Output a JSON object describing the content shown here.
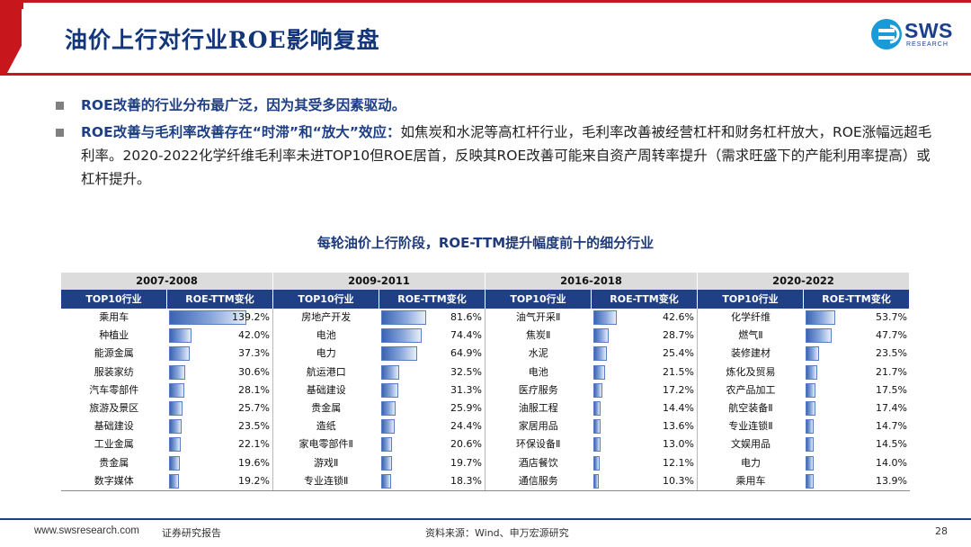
{
  "header": {
    "title": "油价上行对行业ROE影响复盘",
    "logo_text": "SWS",
    "logo_sub": "RESEARCH",
    "logo_mark_color": "#1a9ad6",
    "brand_red": "#c8161d",
    "brand_navy": "#1f3f86"
  },
  "bullets": [
    {
      "bold": "ROE改善的行业分布最广泛，因为其受多因素驱动。",
      "text": ""
    },
    {
      "bold": "ROE改善与毛利率改善存在“时滞”和“放大”效应：",
      "text": "如焦炭和水泥等高杠杆行业，毛利率改善被经营杠杆和财务杠杆放大，ROE涨幅远超毛利率。2020-2022化学纤维毛利率未进TOP10但ROE居首，反映其ROE改善可能来自资产周转率提升（需求旺盛下的产能利用率提高）或杠杆提升。"
    }
  ],
  "table": {
    "title": "每轮油价上行阶段，ROE-TTM提升幅度前十的细分行业",
    "col_name": "TOP10行业",
    "col_value": "ROE-TTM变化",
    "max_value": 139.2,
    "periods": [
      {
        "label": "2007-2008",
        "rows": [
          {
            "name": "乘用车",
            "value": 139.2,
            "label": "139.2%"
          },
          {
            "name": "种植业",
            "value": 42.0,
            "label": "42.0%"
          },
          {
            "name": "能源金属",
            "value": 37.3,
            "label": "37.3%"
          },
          {
            "name": "服装家纺",
            "value": 30.6,
            "label": "30.6%"
          },
          {
            "name": "汽车零部件",
            "value": 28.1,
            "label": "28.1%"
          },
          {
            "name": "旅游及景区",
            "value": 25.7,
            "label": "25.7%"
          },
          {
            "name": "基础建设",
            "value": 23.5,
            "label": "23.5%"
          },
          {
            "name": "工业金属",
            "value": 22.1,
            "label": "22.1%"
          },
          {
            "name": "贵金属",
            "value": 19.6,
            "label": "19.6%"
          },
          {
            "name": "数字媒体",
            "value": 19.2,
            "label": "19.2%"
          }
        ]
      },
      {
        "label": "2009-2011",
        "rows": [
          {
            "name": "房地产开发",
            "value": 81.6,
            "label": "81.6%"
          },
          {
            "name": "电池",
            "value": 74.4,
            "label": "74.4%"
          },
          {
            "name": "电力",
            "value": 64.9,
            "label": "64.9%"
          },
          {
            "name": "航运港口",
            "value": 32.5,
            "label": "32.5%"
          },
          {
            "name": "基础建设",
            "value": 31.3,
            "label": "31.3%"
          },
          {
            "name": "贵金属",
            "value": 25.9,
            "label": "25.9%"
          },
          {
            "name": "造纸",
            "value": 24.4,
            "label": "24.4%"
          },
          {
            "name": "家电零部件Ⅱ",
            "value": 20.6,
            "label": "20.6%"
          },
          {
            "name": "游戏Ⅱ",
            "value": 19.7,
            "label": "19.7%"
          },
          {
            "name": "专业连锁Ⅱ",
            "value": 18.3,
            "label": "18.3%"
          }
        ]
      },
      {
        "label": "2016-2018",
        "rows": [
          {
            "name": "油气开采Ⅱ",
            "value": 42.6,
            "label": "42.6%"
          },
          {
            "name": "焦炭Ⅱ",
            "value": 28.7,
            "label": "28.7%"
          },
          {
            "name": "水泥",
            "value": 25.4,
            "label": "25.4%"
          },
          {
            "name": "电池",
            "value": 21.5,
            "label": "21.5%"
          },
          {
            "name": "医疗服务",
            "value": 17.2,
            "label": "17.2%"
          },
          {
            "name": "油服工程",
            "value": 14.4,
            "label": "14.4%"
          },
          {
            "name": "家居用品",
            "value": 13.6,
            "label": "13.6%"
          },
          {
            "name": "环保设备Ⅱ",
            "value": 13.0,
            "label": "13.0%"
          },
          {
            "name": "酒店餐饮",
            "value": 12.1,
            "label": "12.1%"
          },
          {
            "name": "通信服务",
            "value": 10.3,
            "label": "10.3%"
          }
        ]
      },
      {
        "label": "2020-2022",
        "rows": [
          {
            "name": "化学纤维",
            "value": 53.7,
            "label": "53.7%"
          },
          {
            "name": "燃气Ⅱ",
            "value": 47.7,
            "label": "47.7%"
          },
          {
            "name": "装修建材",
            "value": 23.5,
            "label": "23.5%"
          },
          {
            "name": "炼化及贸易",
            "value": 21.7,
            "label": "21.7%"
          },
          {
            "name": "农产品加工",
            "value": 17.5,
            "label": "17.5%"
          },
          {
            "name": "航空装备Ⅱ",
            "value": 17.4,
            "label": "17.4%"
          },
          {
            "name": "专业连锁Ⅱ",
            "value": 14.7,
            "label": "14.7%"
          },
          {
            "name": "文娱用品",
            "value": 14.5,
            "label": "14.5%"
          },
          {
            "name": "电力",
            "value": 14.0,
            "label": "14.0%"
          },
          {
            "name": "乘用车",
            "value": 13.9,
            "label": "13.9%"
          }
        ]
      }
    ]
  },
  "footer": {
    "url": "www.swsresearch.com",
    "label": "证券研究报告",
    "source": "资料来源：Wind、申万宏源研究",
    "page": "28"
  }
}
